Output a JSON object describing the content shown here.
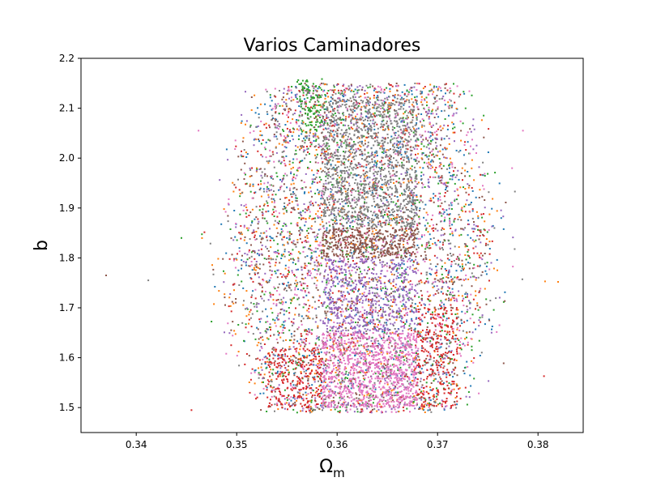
{
  "chart_data": {
    "type": "scatter",
    "title": "Varios Caminadores",
    "xlabel": "Ω",
    "xlabel_subscript": "m",
    "ylabel": "b",
    "xlim": [
      0.3345,
      0.3845
    ],
    "ylim": [
      1.45,
      2.2
    ],
    "xticks": [
      0.34,
      0.35,
      0.36,
      0.37,
      0.38
    ],
    "yticks": [
      1.5,
      1.6,
      1.7,
      1.8,
      1.9,
      2.0,
      2.1,
      2.2
    ],
    "xtick_labels": [
      "0.34",
      "0.35",
      "0.36",
      "0.37",
      "0.38"
    ],
    "ytick_labels": [
      "1.5",
      "1.6",
      "1.7",
      "1.8",
      "1.9",
      "2.0",
      "2.1",
      "2.2"
    ],
    "grid": false,
    "legend": "none",
    "colors": [
      "#1f77b4",
      "#ff7f0e",
      "#2ca02c",
      "#d62728",
      "#9467bd",
      "#8c564b",
      "#e377c2",
      "#7f7f7f"
    ],
    "dense_regions": [
      {
        "x_range": [
          0.3585,
          0.368
        ],
        "y_range": [
          1.5,
          1.65
        ],
        "color": "#e377c2",
        "density": 900
      },
      {
        "x_range": [
          0.3585,
          0.368
        ],
        "y_range": [
          1.65,
          1.8
        ],
        "color": "#9467bd",
        "density": 500
      },
      {
        "x_range": [
          0.3585,
          0.368
        ],
        "y_range": [
          1.8,
          1.86
        ],
        "color": "#8c564b",
        "density": 400
      },
      {
        "x_range": [
          0.3585,
          0.368
        ],
        "y_range": [
          1.86,
          2.12
        ],
        "color": "#7f7f7f",
        "density": 1100
      },
      {
        "x_range": [
          0.356,
          0.3585
        ],
        "y_range": [
          2.05,
          2.16
        ],
        "color": "#2ca02c",
        "density": 90
      },
      {
        "x_range": [
          0.353,
          0.3585
        ],
        "y_range": [
          1.5,
          1.62
        ],
        "color": "#d62728",
        "density": 220
      },
      {
        "x_range": [
          0.368,
          0.372
        ],
        "y_range": [
          1.5,
          1.7
        ],
        "color": "#d62728",
        "density": 220
      }
    ],
    "scatter_cloud": {
      "x_range": [
        0.346,
        0.378
      ],
      "y_range": [
        1.49,
        2.15
      ],
      "points_per_series": 700
    },
    "outliers": [
      {
        "x": 0.337,
        "y": 1.765,
        "color": "#8c564b"
      },
      {
        "x": 0.3412,
        "y": 1.755,
        "color": "#7f7f7f"
      },
      {
        "x": 0.3445,
        "y": 1.84,
        "color": "#2ca02c"
      },
      {
        "x": 0.3462,
        "y": 2.055,
        "color": "#e377c2"
      },
      {
        "x": 0.3806,
        "y": 1.563,
        "color": "#d62728"
      },
      {
        "x": 0.382,
        "y": 1.752,
        "color": "#ff7f0e"
      },
      {
        "x": 0.3807,
        "y": 1.753,
        "color": "#ff7f0e"
      },
      {
        "x": 0.3785,
        "y": 2.055,
        "color": "#e377c2"
      },
      {
        "x": 0.3777,
        "y": 1.933,
        "color": "#7f7f7f"
      },
      {
        "x": 0.3455,
        "y": 1.495,
        "color": "#d62728"
      }
    ]
  }
}
